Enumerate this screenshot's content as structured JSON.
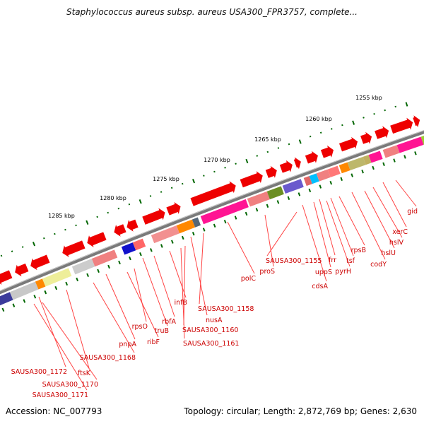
{
  "title": "Staphylococcus aureus subsp. aureus USA300_FPR3757, complete...",
  "footer": {
    "accession": "Accession: NC_007793",
    "summary": "Topology: circular; Length: 2,872,769 bp; Genes: 2,630"
  },
  "kbp_labels": [
    "1255 kbp",
    "1260 kbp",
    "1265 kbp",
    "1270 kbp",
    "1275 kbp",
    "1280 kbp",
    "1285 kbp"
  ],
  "gene_labels": [
    "gid",
    "xerC",
    "hslV",
    "hslU",
    "codY",
    "rpsB",
    "tsf",
    "frr",
    "pyrH",
    "uppS",
    "cdsA",
    "SAUSA300_1155",
    "proS",
    "polC",
    "SAUSA300_1158",
    "nusA",
    "SAUSA300_1160",
    "SAUSA300_1161",
    "infB",
    "rbfA",
    "truB",
    "rpsO",
    "ribF",
    "pnpA",
    "SAUSA300_1168",
    "ftsK",
    "SAUSA300_1172",
    "SAUSA300_1170",
    "SAUSA300_1171"
  ],
  "colors": {
    "backbone": "#808080",
    "cds_arrow": "#ee0000",
    "tick": "#006600",
    "label": "#cc0000"
  }
}
